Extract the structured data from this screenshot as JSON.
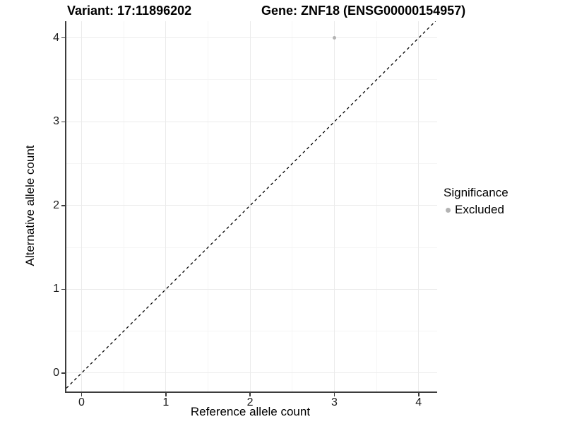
{
  "titles": {
    "variant": "Variant: 17:11896202",
    "gene": "Gene: ZNF18 (ENSG00000154957)"
  },
  "axes": {
    "x_label": "Reference allele count",
    "y_label": "Alternative allele count"
  },
  "legend": {
    "title": "Significance",
    "items": [
      {
        "label": "Excluded",
        "color": "#b3b3b3"
      }
    ]
  },
  "colors": {
    "background": "#ffffff",
    "axis_line": "#3c3c3c",
    "grid_major": "#ebebeb",
    "grid_minor": "#f5f5f5",
    "point": "#b3b3b3",
    "reference_line": "#000000",
    "text": "#000000"
  },
  "chart_data": {
    "type": "scatter",
    "title": "Variant: 17:11896202 — Gene: ZNF18 (ENSG00000154957)",
    "xlabel": "Reference allele count",
    "ylabel": "Alternative allele count",
    "xlim": [
      -0.18,
      4.22
    ],
    "ylim": [
      -0.22,
      4.2
    ],
    "x_ticks": [
      0,
      1,
      2,
      3,
      4
    ],
    "y_ticks": [
      0,
      1,
      2,
      3,
      4
    ],
    "x_minor": [
      0.5,
      1.5,
      2.5,
      3.5
    ],
    "y_minor": [
      0.5,
      1.5,
      2.5,
      3.5
    ],
    "grid": "major+minor",
    "legend_position": "right",
    "series": [
      {
        "name": "Excluded",
        "color": "#b3b3b3",
        "marker": "circle",
        "marker_size_px": 5,
        "points": [
          {
            "x": 3,
            "y": 4
          }
        ]
      }
    ],
    "reference_line": {
      "kind": "identity y=x",
      "style": "dashed",
      "color": "#000000",
      "from": [
        -0.18,
        -0.18
      ],
      "to": [
        4.2,
        4.2
      ]
    }
  }
}
